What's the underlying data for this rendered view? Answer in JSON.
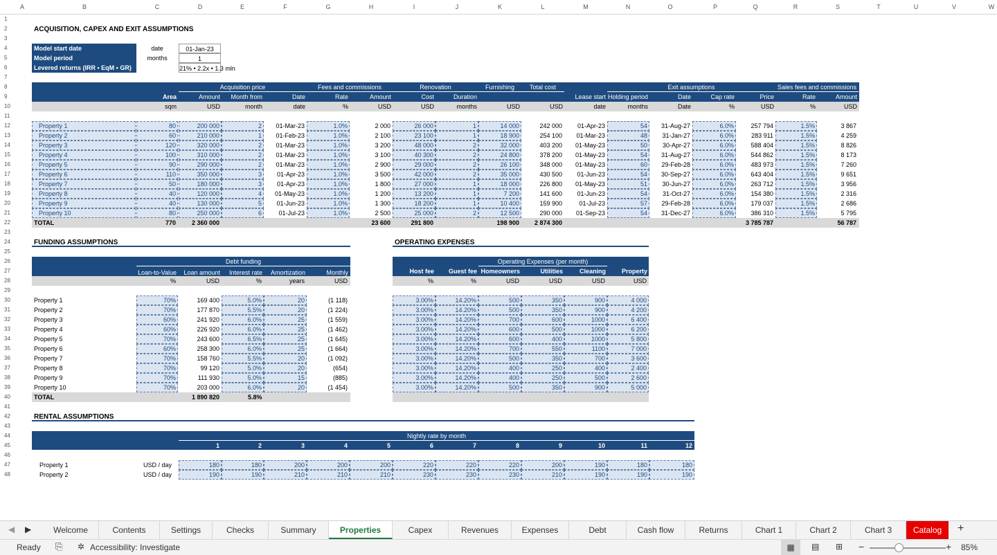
{
  "columns": [
    "A",
    "B",
    "C",
    "D",
    "E",
    "F",
    "G",
    "H",
    "I",
    "J",
    "K",
    "L",
    "M",
    "N",
    "O",
    "P",
    "Q",
    "R",
    "S",
    "T",
    "U",
    "V",
    "W"
  ],
  "title_main": "ACQUISITION, CAPEX AND EXIT ASSUMPTIONS",
  "model": [
    {
      "label": "Model start date",
      "unit": "date",
      "value": "01-Jan-23"
    },
    {
      "label": "Model period",
      "unit": "months",
      "value": "1"
    },
    {
      "label": "Levered returns (IRR • EqM • GR)",
      "unit": "",
      "value": "21% • 2.2x • 1.3 mln"
    }
  ],
  "acq_groups": [
    "Acquisition price",
    "Fees and commissions",
    "Renovation",
    "Furnishing",
    "Total cost",
    "Exit assumptions",
    "Sales fees and commissions"
  ],
  "acq_headers": [
    "Area",
    "Amount",
    "Month from start",
    "Date",
    "Rate",
    "Amount",
    "Cost",
    "Duration",
    "",
    "",
    "Lease start date",
    "Holding period",
    "Date",
    "Cap rate",
    "Price",
    "Rate",
    "Amount"
  ],
  "acq_units": [
    "sqm",
    "USD",
    "month",
    "date",
    "%",
    "USD",
    "USD",
    "months",
    "USD",
    "USD",
    "date",
    "months",
    "Date",
    "%",
    "USD",
    "%",
    "USD"
  ],
  "properties": [
    [
      "Property 1",
      "80",
      "200 000",
      "2",
      "01-Mar-23",
      "1.0%",
      "2 000",
      "26 000",
      "1",
      "14 000",
      "242 000",
      "01-Apr-23",
      "54",
      "31-Aug-27",
      "6.0%",
      "257 794",
      "1.5%",
      "3 867"
    ],
    [
      "Property 2",
      "60",
      "210 000",
      "1",
      "01-Feb-23",
      "1.0%",
      "2 100",
      "23 100",
      "1",
      "18 900",
      "254 100",
      "01-Mar-23",
      "48",
      "31-Jan-27",
      "6.0%",
      "283 911",
      "1.5%",
      "4 259"
    ],
    [
      "Property 3",
      "120",
      "320 000",
      "2",
      "01-Mar-23",
      "1.0%",
      "3 200",
      "48 000",
      "2",
      "32 000",
      "403 200",
      "01-May-23",
      "50",
      "30-Apr-27",
      "6.0%",
      "588 404",
      "1.5%",
      "8 826"
    ],
    [
      "Property 4",
      "100",
      "310 000",
      "2",
      "01-Mar-23",
      "1.0%",
      "3 100",
      "40 300",
      "2",
      "24 800",
      "378 200",
      "01-May-23",
      "54",
      "31-Aug-27",
      "6.0%",
      "544 862",
      "1.5%",
      "8 173"
    ],
    [
      "Property 5",
      "90",
      "290 000",
      "2",
      "01-Mar-23",
      "1.0%",
      "2 900",
      "29 000",
      "2",
      "26 100",
      "348 000",
      "01-May-23",
      "60",
      "29-Feb-28",
      "6.0%",
      "483 973",
      "1.5%",
      "7 260"
    ],
    [
      "Property 6",
      "110",
      "350 000",
      "3",
      "01-Apr-23",
      "1.0%",
      "3 500",
      "42 000",
      "2",
      "35 000",
      "430 500",
      "01-Jun-23",
      "54",
      "30-Sep-27",
      "6.0%",
      "643 404",
      "1.5%",
      "9 651"
    ],
    [
      "Property 7",
      "50",
      "180 000",
      "3",
      "01-Apr-23",
      "1.0%",
      "1 800",
      "27 000",
      "1",
      "18 000",
      "226 800",
      "01-May-23",
      "51",
      "30-Jun-27",
      "6.0%",
      "263 712",
      "1.5%",
      "3 956"
    ],
    [
      "Property 8",
      "40",
      "120 000",
      "4",
      "01-May-23",
      "1.0%",
      "1 200",
      "13 200",
      "1",
      "7 200",
      "141 600",
      "01-Jun-23",
      "54",
      "31-Oct-27",
      "6.0%",
      "154 380",
      "1.5%",
      "2 316"
    ],
    [
      "Property 9",
      "40",
      "130 000",
      "5",
      "01-Jun-23",
      "1.0%",
      "1 300",
      "18 200",
      "1",
      "10 400",
      "159 900",
      "01-Jul-23",
      "57",
      "29-Feb-28",
      "6.0%",
      "179 037",
      "1.5%",
      "2 686"
    ],
    [
      "Property 10",
      "80",
      "250 000",
      "6",
      "01-Jul-23",
      "1.0%",
      "2 500",
      "25 000",
      "2",
      "12 500",
      "290 000",
      "01-Sep-23",
      "54",
      "31-Dec-27",
      "6.0%",
      "386 310",
      "1.5%",
      "5 795"
    ]
  ],
  "acq_total": {
    "label": "TOTAL",
    "area": "770",
    "amount": "2 360 000",
    "fees": "23 600",
    "reno": "291 800",
    "furn": "198 900",
    "total": "2 874 300",
    "price": "3 785 787",
    "sales": "56 787"
  },
  "funding": {
    "title": "FUNDING ASSUMPTIONS",
    "group": "Debt funding",
    "headers": [
      "Loan-to-Value (LTV)",
      "Loan amount",
      "Interest rate",
      "Amortization period",
      "Monthly repayment"
    ],
    "units": [
      "%",
      "USD",
      "%",
      "years",
      "USD"
    ],
    "rows": [
      [
        "Property 1",
        "70%",
        "169 400",
        "5.0%",
        "20",
        "(1 118)"
      ],
      [
        "Property 2",
        "70%",
        "177 870",
        "5.5%",
        "20",
        "(1 224)"
      ],
      [
        "Property 3",
        "60%",
        "241 920",
        "6.0%",
        "25",
        "(1 559)"
      ],
      [
        "Property 4",
        "60%",
        "226 920",
        "6.0%",
        "25",
        "(1 462)"
      ],
      [
        "Property 5",
        "70%",
        "243 600",
        "6.5%",
        "25",
        "(1 645)"
      ],
      [
        "Property 6",
        "60%",
        "258 300",
        "6.0%",
        "25",
        "(1 664)"
      ],
      [
        "Property 7",
        "70%",
        "158 760",
        "5.5%",
        "20",
        "(1 092)"
      ],
      [
        "Property 8",
        "70%",
        "99 120",
        "5.0%",
        "20",
        "(654)"
      ],
      [
        "Property 9",
        "70%",
        "111 930",
        "5.0%",
        "15",
        "(885)"
      ],
      [
        "Property 10",
        "70%",
        "203 000",
        "6.0%",
        "20",
        "(1 454)"
      ]
    ],
    "total": {
      "label": "TOTAL",
      "loan": "1 890 820",
      "rate": "5.8%"
    }
  },
  "opex": {
    "title": "OPERATING EXPENSES",
    "group": "Operating Expenses (per month)",
    "headers": [
      "Host fee",
      "Guest fee",
      "Homeowners Association (HOA) fees",
      "Utilities",
      "Cleaning",
      "Property taxes (per year)"
    ],
    "units": [
      "%",
      "%",
      "USD",
      "USD",
      "USD",
      "USD"
    ],
    "rows": [
      [
        "3.00%",
        "14.20%",
        "500",
        "350",
        "900",
        "4 000"
      ],
      [
        "3.00%",
        "14.20%",
        "500",
        "350",
        "900",
        "4 200"
      ],
      [
        "3.00%",
        "14.20%",
        "700",
        "600",
        "1000",
        "6 400"
      ],
      [
        "3.00%",
        "14.20%",
        "600",
        "500",
        "1000",
        "6 200"
      ],
      [
        "3.00%",
        "14.20%",
        "600",
        "400",
        "1000",
        "5 800"
      ],
      [
        "3.00%",
        "14.20%",
        "700",
        "550",
        "1100",
        "7 000"
      ],
      [
        "3.00%",
        "14.20%",
        "500",
        "350",
        "700",
        "3 600"
      ],
      [
        "3.00%",
        "14.20%",
        "400",
        "250",
        "400",
        "2 400"
      ],
      [
        "3.00%",
        "14.20%",
        "400",
        "250",
        "500",
        "2 600"
      ],
      [
        "3.00%",
        "14.20%",
        "500",
        "350",
        "900",
        "5 000"
      ]
    ]
  },
  "rental": {
    "title": "RENTAL ASSUMPTIONS",
    "group": "Nightly rate by month",
    "months": [
      "1",
      "2",
      "3",
      "4",
      "5",
      "6",
      "7",
      "8",
      "9",
      "10",
      "11",
      "12"
    ],
    "rows": [
      {
        "label": "Property 1",
        "unit": "USD / day",
        "values": [
          "180",
          "180",
          "200",
          "200",
          "200",
          "220",
          "220",
          "220",
          "200",
          "190",
          "180",
          "180"
        ]
      },
      {
        "label": "Property 2",
        "unit": "USD / day",
        "values": [
          "190",
          "190",
          "210",
          "210",
          "210",
          "230",
          "230",
          "230",
          "210",
          "190",
          "190",
          "190"
        ]
      }
    ]
  },
  "tabs": [
    "Welcome",
    "Contents",
    "Settings",
    "Checks",
    "Summary",
    "Properties",
    "Capex",
    "Revenues",
    "Expenses",
    "Debt",
    "Cash flow",
    "Returns",
    "Chart 1",
    "Chart 2",
    "Chart 3",
    "Catalog"
  ],
  "active_tab": "Properties",
  "status": {
    "ready": "Ready",
    "accessibility": "Accessibility: Investigate",
    "zoom": "85%"
  }
}
